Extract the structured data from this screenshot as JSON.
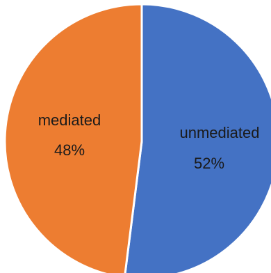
{
  "chart_data": {
    "type": "pie",
    "title": "",
    "slices": [
      {
        "label": "unmediated",
        "percent_label": "52%",
        "value": 52,
        "color": "#4472C4"
      },
      {
        "label": "mediated",
        "percent_label": "48%",
        "value": 48,
        "color": "#ED7D31"
      }
    ],
    "start_angle_deg": 0,
    "direction": "clockwise",
    "legend": "none",
    "slice_border_color": "#ffffff"
  }
}
